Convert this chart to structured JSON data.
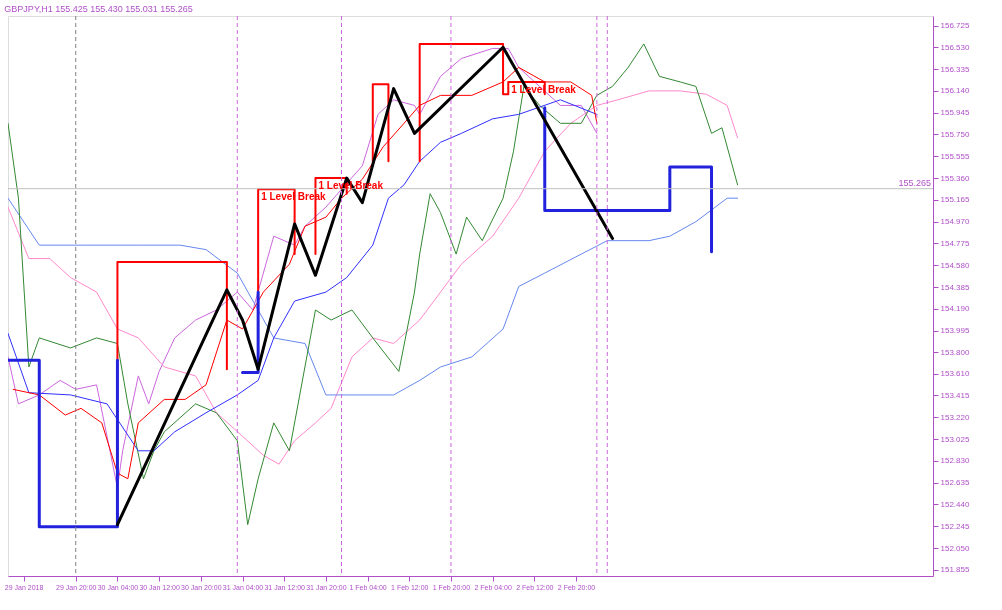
{
  "chart_data": {
    "type": "line",
    "title": "GBPJPY,H1  155.425 155.430 155.031 155.265",
    "xlim": [
      "2018-01-29T07:00",
      "2018-02-05T16:30"
    ],
    "xticks": [
      {
        "value": "2018-01-29T10:00",
        "label": "29 Jan 2018"
      },
      {
        "value": "2018-01-29T20:00",
        "label": "29 Jan 20:00"
      },
      {
        "value": "2018-01-30T04:00",
        "label": "30 Jan 04:00"
      },
      {
        "value": "2018-01-30T12:00",
        "label": "30 Jan 12:00"
      },
      {
        "value": "2018-01-30T20:00",
        "label": "30 Jan 20:00"
      },
      {
        "value": "2018-01-31T04:00",
        "label": "31 Jan 04:00"
      },
      {
        "value": "2018-01-31T12:00",
        "label": "31 Jan 12:00"
      },
      {
        "value": "2018-01-31T20:00",
        "label": "31 Jan 20:00"
      },
      {
        "value": "2018-02-01T04:00",
        "label": "1 Feb 04:00"
      },
      {
        "value": "2018-02-01T12:00",
        "label": "1 Feb 12:00"
      },
      {
        "value": "2018-02-01T20:00",
        "label": "1 Feb 20:00"
      },
      {
        "value": "2018-02-02T04:00",
        "label": "2 Feb 04:00"
      },
      {
        "value": "2018-02-02T12:00",
        "label": "2 Feb 12:00"
      },
      {
        "value": "2018-02-02T20:00",
        "label": "2 Feb 20:00"
      }
    ],
    "ylim": [
      151.8,
      156.81
    ],
    "yticks": [
      151.855,
      {
        "value": 152.05,
        "label": "152.050"
      },
      152.245,
      {
        "value": 152.44,
        "label": "152.440"
      },
      152.635,
      {
        "value": 152.83,
        "label": "152.830"
      },
      153.025,
      {
        "value": 153.22,
        "label": "153.220"
      },
      153.415,
      {
        "value": 153.61,
        "label": "153.610"
      },
      {
        "value": 153.8,
        "label": "153.800"
      },
      153.995,
      {
        "value": 154.19,
        "label": "154.190"
      },
      154.385,
      {
        "value": 154.58,
        "label": "154.580"
      },
      154.775,
      {
        "value": 154.97,
        "label": "154.970"
      },
      155.165,
      {
        "value": 155.36,
        "label": "155.360"
      },
      155.555,
      {
        "value": 155.75,
        "label": "155.750"
      },
      155.945,
      {
        "value": 156.14,
        "label": "156.140"
      },
      156.335,
      {
        "value": 156.53,
        "label": "156.530"
      },
      156.725
    ],
    "series": [
      {
        "type": "line",
        "color": "#cc66dd",
        "x": [
          "2018-01-29T07:00",
          "2018-01-29T09:00",
          "2018-01-29T13:00",
          "2018-01-29T17:00",
          "2018-01-29T20:00",
          "2018-01-30T00:00",
          "2018-01-30T04:00",
          "2018-01-30T05:00",
          "2018-01-30T08:00",
          "2018-01-30T10:00",
          "2018-01-30T12:00",
          "2018-01-30T15:00",
          "2018-01-30T19:00",
          "2018-01-30T23:00",
          "2018-01-31T03:00",
          "2018-01-31T06:00",
          "2018-01-31T10:00",
          "2018-01-31T14:00",
          "2018-01-31T16:00",
          "2018-01-31T20:00",
          "2018-01-31T23:00",
          "2018-02-01T03:00",
          "2018-02-01T06:00",
          "2018-02-01T09:00",
          "2018-02-01T13:00",
          "2018-02-01T14:00",
          "2018-02-01T18:00",
          "2018-02-01T22:00",
          "2018-02-02T04:00",
          "2018-02-02T07:00",
          "2018-02-02T09:00",
          "2018-02-02T13:00",
          "2018-02-02T17:00",
          "2018-02-02T21:00",
          "2018-02-03T00:00"
        ],
        "values": [
          153.76,
          153.34,
          153.42,
          153.55,
          153.47,
          153.51,
          152.59,
          152.92,
          153.59,
          153.34,
          153.63,
          153.93,
          154.09,
          154.18,
          154.34,
          154.18,
          154.84,
          154.76,
          154.93,
          155.1,
          155.26,
          155.47,
          155.93,
          156.06,
          156.01,
          155.93,
          156.27,
          156.43,
          156.52,
          156.52,
          156.35,
          156.18,
          156.01,
          156.01,
          155.76
        ]
      },
      {
        "type": "line",
        "color": "#ff88cc",
        "x": [
          "2018-01-29T07:00",
          "2018-01-29T11:00",
          "2018-01-29T15:00",
          "2018-01-29T19:00",
          "2018-01-30T00:00",
          "2018-01-30T04:00",
          "2018-01-30T08:00",
          "2018-01-30T13:00",
          "2018-01-30T19:00",
          "2018-01-30T23:00",
          "2018-01-31T04:00",
          "2018-01-31T08:00",
          "2018-01-31T11:00",
          "2018-01-31T14:00",
          "2018-01-31T18:00",
          "2018-01-31T21:00",
          "2018-02-01T01:00",
          "2018-02-01T05:00",
          "2018-02-01T09:00",
          "2018-02-01T14:00",
          "2018-02-01T18:00",
          "2018-02-01T22:00",
          "2018-02-02T04:00",
          "2018-02-02T09:00",
          "2018-02-02T14:00",
          "2018-02-02T19:00",
          "2018-02-03T00:00",
          "2018-02-03T04:00",
          "2018-02-03T10:00",
          "2018-02-03T16:00",
          "2018-02-03T21:00",
          "2018-02-04T01:00",
          "2018-02-04T03:00"
        ],
        "values": [
          155.1,
          154.64,
          154.64,
          154.47,
          154.34,
          154.01,
          153.93,
          153.67,
          153.59,
          153.26,
          153.05,
          152.88,
          152.8,
          153.01,
          153.17,
          153.3,
          153.76,
          153.93,
          153.88,
          154.09,
          154.34,
          154.59,
          154.84,
          155.18,
          155.6,
          155.85,
          156.01,
          156.06,
          156.14,
          156.14,
          156.11,
          156.01,
          155.72
        ]
      },
      {
        "type": "line",
        "color": "#6688ee",
        "x": [
          "2018-01-29T07:00",
          "2018-01-29T13:00",
          "2018-01-29T22:00",
          "2018-01-30T08:00",
          "2018-01-30T16:00",
          "2018-01-30T21:00",
          "2018-01-31T03:00",
          "2018-01-31T10:00",
          "2018-01-31T16:00",
          "2018-01-31T20:00",
          "2018-02-01T01:00",
          "2018-02-01T09:00",
          "2018-02-01T14:00",
          "2018-02-01T18:00",
          "2018-02-02T00:00",
          "2018-02-02T06:00",
          "2018-02-02T09:00",
          "2018-02-02T14:00",
          "2018-02-02T21:00",
          "2018-02-03T02:00",
          "2018-02-03T10:00",
          "2018-02-03T14:00",
          "2018-02-03T19:00",
          "2018-02-04T01:00",
          "2018-02-04T03:00"
        ],
        "values": [
          155.18,
          154.76,
          154.76,
          154.76,
          154.76,
          154.72,
          154.51,
          153.93,
          153.88,
          153.42,
          153.42,
          153.42,
          153.55,
          153.67,
          153.76,
          154.01,
          154.39,
          154.51,
          154.68,
          154.8,
          154.8,
          154.84,
          154.97,
          155.18,
          155.18
        ]
      },
      {
        "type": "line",
        "color": "#338833",
        "x": [
          "2018-01-29T07:00",
          "2018-01-29T09:00",
          "2018-01-29T11:00",
          "2018-01-29T13:00",
          "2018-01-29T19:00",
          "2018-01-30T00:00",
          "2018-01-30T04:00",
          "2018-01-30T06:00",
          "2018-01-30T09:00",
          "2018-01-30T11:00",
          "2018-01-30T13:00",
          "2018-01-30T19:00",
          "2018-01-30T23:00",
          "2018-01-31T03:00",
          "2018-01-31T05:00",
          "2018-01-31T07:00",
          "2018-01-31T10:00",
          "2018-01-31T13:00",
          "2018-01-31T18:00",
          "2018-01-31T21:00",
          "2018-02-01T01:00",
          "2018-02-01T05:00",
          "2018-02-01T10:00",
          "2018-02-01T13:00",
          "2018-02-01T14:00",
          "2018-02-01T16:00",
          "2018-02-01T18:00",
          "2018-02-01T21:00",
          "2018-02-01T23:00",
          "2018-02-02T02:00",
          "2018-02-02T06:00",
          "2018-02-02T08:00",
          "2018-02-02T10:00",
          "2018-02-02T13:00",
          "2018-02-02T17:00",
          "2018-02-02T21:00",
          "2018-02-03T00:00",
          "2018-02-03T03:00",
          "2018-02-03T06:00",
          "2018-02-03T09:00",
          "2018-02-03T12:00",
          "2018-02-03T16:00",
          "2018-02-03T19:00",
          "2018-02-03T22:00",
          "2018-02-04T00:00",
          "2018-02-04T03:00"
        ],
        "values": [
          155.85,
          155.18,
          153.67,
          153.93,
          153.84,
          153.93,
          153.88,
          153.34,
          152.67,
          152.92,
          153.09,
          153.34,
          153.26,
          153.01,
          152.26,
          152.67,
          153.17,
          152.92,
          154.18,
          154.09,
          154.18,
          153.93,
          153.63,
          154.34,
          154.68,
          155.22,
          155.05,
          154.68,
          155.01,
          154.8,
          155.18,
          155.6,
          156.18,
          156.01,
          155.85,
          155.85,
          156.1,
          156.18,
          156.35,
          156.56,
          156.27,
          156.22,
          156.18,
          155.76,
          155.81,
          155.3
        ]
      },
      {
        "type": "line",
        "color": "#3030ff",
        "x": [
          "2018-01-29T07:00",
          "2018-01-29T11:00",
          "2018-01-29T19:00",
          "2018-01-30T02:00",
          "2018-01-30T08:00",
          "2018-01-30T11:00",
          "2018-01-30T15:00",
          "2018-01-30T21:00",
          "2018-01-31T03:00",
          "2018-01-31T07:00",
          "2018-01-31T10:00",
          "2018-01-31T14:00",
          "2018-01-31T20:00",
          "2018-02-01T00:00",
          "2018-02-01T05:00",
          "2018-02-01T08:00",
          "2018-02-01T11:00",
          "2018-02-01T14:00",
          "2018-02-01T18:00",
          "2018-02-01T22:00",
          "2018-02-02T04:00",
          "2018-02-02T09:00",
          "2018-02-02T17:00",
          "2018-02-03T00:00"
        ],
        "values": [
          153.97,
          153.44,
          153.42,
          153.34,
          152.92,
          152.92,
          153.09,
          153.26,
          153.42,
          153.55,
          153.93,
          154.26,
          154.34,
          154.47,
          154.76,
          155.18,
          155.3,
          155.51,
          155.68,
          155.76,
          155.89,
          155.93,
          156.06,
          155.93
        ]
      },
      {
        "type": "line",
        "color": "#ff0000",
        "x": [
          "2018-01-29T08:00",
          "2018-01-29T13:00",
          "2018-01-29T18:00",
          "2018-01-29T21:00",
          "2018-01-30T01:00",
          "2018-01-30T04:00",
          "2018-01-30T06:00",
          "2018-01-30T08:00",
          "2018-01-30T13:00",
          "2018-01-30T17:00",
          "2018-01-30T21:00",
          "2018-01-31T01:00",
          "2018-01-31T04:00",
          "2018-01-31T08:00",
          "2018-01-31T13:00",
          "2018-01-31T16:00",
          "2018-01-31T20:00",
          "2018-01-31T23:00",
          "2018-02-01T03:00",
          "2018-02-01T07:00",
          "2018-02-01T11:00",
          "2018-02-01T14:00",
          "2018-02-01T18:00",
          "2018-02-02T00:00",
          "2018-02-02T06:00",
          "2018-02-02T09:00",
          "2018-02-02T14:00",
          "2018-02-02T19:00",
          "2018-02-02T23:00",
          "2018-02-03T00:00"
        ],
        "values": [
          153.47,
          153.42,
          153.24,
          153.3,
          153.17,
          152.72,
          152.67,
          153.17,
          153.38,
          153.38,
          153.51,
          154.09,
          154.01,
          154.34,
          154.59,
          154.93,
          155.01,
          155.18,
          155.35,
          155.64,
          155.85,
          156.01,
          156.1,
          156.1,
          156.22,
          156.35,
          156.22,
          156.22,
          156.1,
          155.85
        ]
      },
      {
        "type": "step",
        "color": "#ff0000",
        "x": [
          "2018-01-30T04:00",
          "2018-01-30T04:00",
          "2018-01-31T01:00",
          "2018-01-31T01:00",
          "2018-01-31T02:00",
          "2018-01-31T07:00",
          "2018-01-31T07:00",
          "2018-01-31T14:00",
          "2018-01-31T14:00",
          "2018-01-31T15:00",
          "2018-01-31T18:00",
          "2018-01-31T18:00",
          "2018-02-01T00:00",
          "2018-02-01T00:00",
          "2018-02-01T01:00",
          "2018-02-01T05:00",
          "2018-02-01T05:00",
          "2018-02-01T08:00",
          "2018-02-01T08:00",
          "2018-02-01T09:00",
          "2018-02-01T14:00",
          "2018-02-01T14:00",
          "2018-02-02T06:00",
          "2018-02-02T06:00",
          "2018-02-02T07:00",
          "2018-02-02T14:00",
          "2018-02-02T14:00"
        ],
        "values": [
          153.73,
          154.61,
          154.61,
          153.65,
          null,
          154.34,
          155.26,
          155.26,
          154.68,
          null,
          154.68,
          155.36,
          155.36,
          155.22,
          null,
          155.51,
          156.2,
          156.2,
          155.51,
          null,
          155.51,
          156.56,
          156.56,
          156.11,
          156.22,
          156.22,
          156.11
        ]
      },
      {
        "type": "step",
        "color": "#2222dd",
        "x": [
          "2018-01-29T07:00",
          "2018-01-29T13:00",
          "2018-01-30T04:00",
          "2018-01-30T05:00",
          "2018-01-31T04:00",
          "2018-01-31T07:00",
          "2018-01-31T08:00",
          "2018-02-02T14:00",
          "2018-02-02T14:00",
          "2018-02-03T14:00",
          "2018-02-03T14:00",
          "2018-02-03T22:00",
          "2018-02-03T22:00"
        ],
        "values": [
          153.73,
          152.24,
          153.73,
          null,
          153.62,
          154.34,
          null,
          155.99,
          155.07,
          155.07,
          155.46,
          155.46,
          154.7
        ]
      },
      {
        "type": "line",
        "color": "#000000",
        "x": [
          "2018-01-30T04:00",
          "2018-01-31T01:00",
          "2018-01-31T04:00",
          "2018-01-31T07:00",
          "2018-01-31T14:00",
          "2018-01-31T18:00",
          "2018-02-01T00:00",
          "2018-02-01T03:00",
          "2018-02-01T09:00",
          "2018-02-01T13:00",
          "2018-02-02T06:00",
          "2018-02-03T03:00"
        ],
        "values": [
          152.26,
          154.36,
          154.09,
          153.65,
          154.95,
          154.49,
          155.36,
          155.14,
          156.16,
          155.76,
          156.53,
          154.82
        ]
      }
    ],
    "ref_lines": [
      {
        "axis": "y",
        "value": 155.265,
        "label": "155.265",
        "color": "#c0c0c0",
        "line_style": "solid"
      },
      {
        "axis": "x",
        "value": "2018-01-29T20:00",
        "color": "#808080",
        "line_style": "dashed"
      },
      {
        "axis": "x",
        "value": "2018-01-31T03:00",
        "color": "#cc66dd",
        "line_style": "dashed"
      },
      {
        "axis": "x",
        "value": "2018-01-31T23:00",
        "color": "#cc66dd",
        "line_style": "dashed"
      },
      {
        "axis": "x",
        "value": "2018-02-01T20:00",
        "color": "#cc66dd",
        "line_style": "dashed"
      },
      {
        "axis": "x",
        "value": "2018-02-03T00:00",
        "color": "#cc66dd",
        "line_style": "dashed"
      },
      {
        "axis": "x",
        "value": "2018-02-03T02:00",
        "color": "#cc66dd",
        "line_style": "dashed"
      }
    ],
    "annotations": [
      {
        "text": "1 Level Break",
        "x": "2018-01-31T07:00",
        "y": 155.26
      },
      {
        "text": "1 Level Break",
        "x": "2018-01-31T18:00",
        "y": 155.36
      },
      {
        "text": "1 Level Break",
        "x": "2018-02-02T07:00",
        "y": 156.22
      }
    ]
  }
}
